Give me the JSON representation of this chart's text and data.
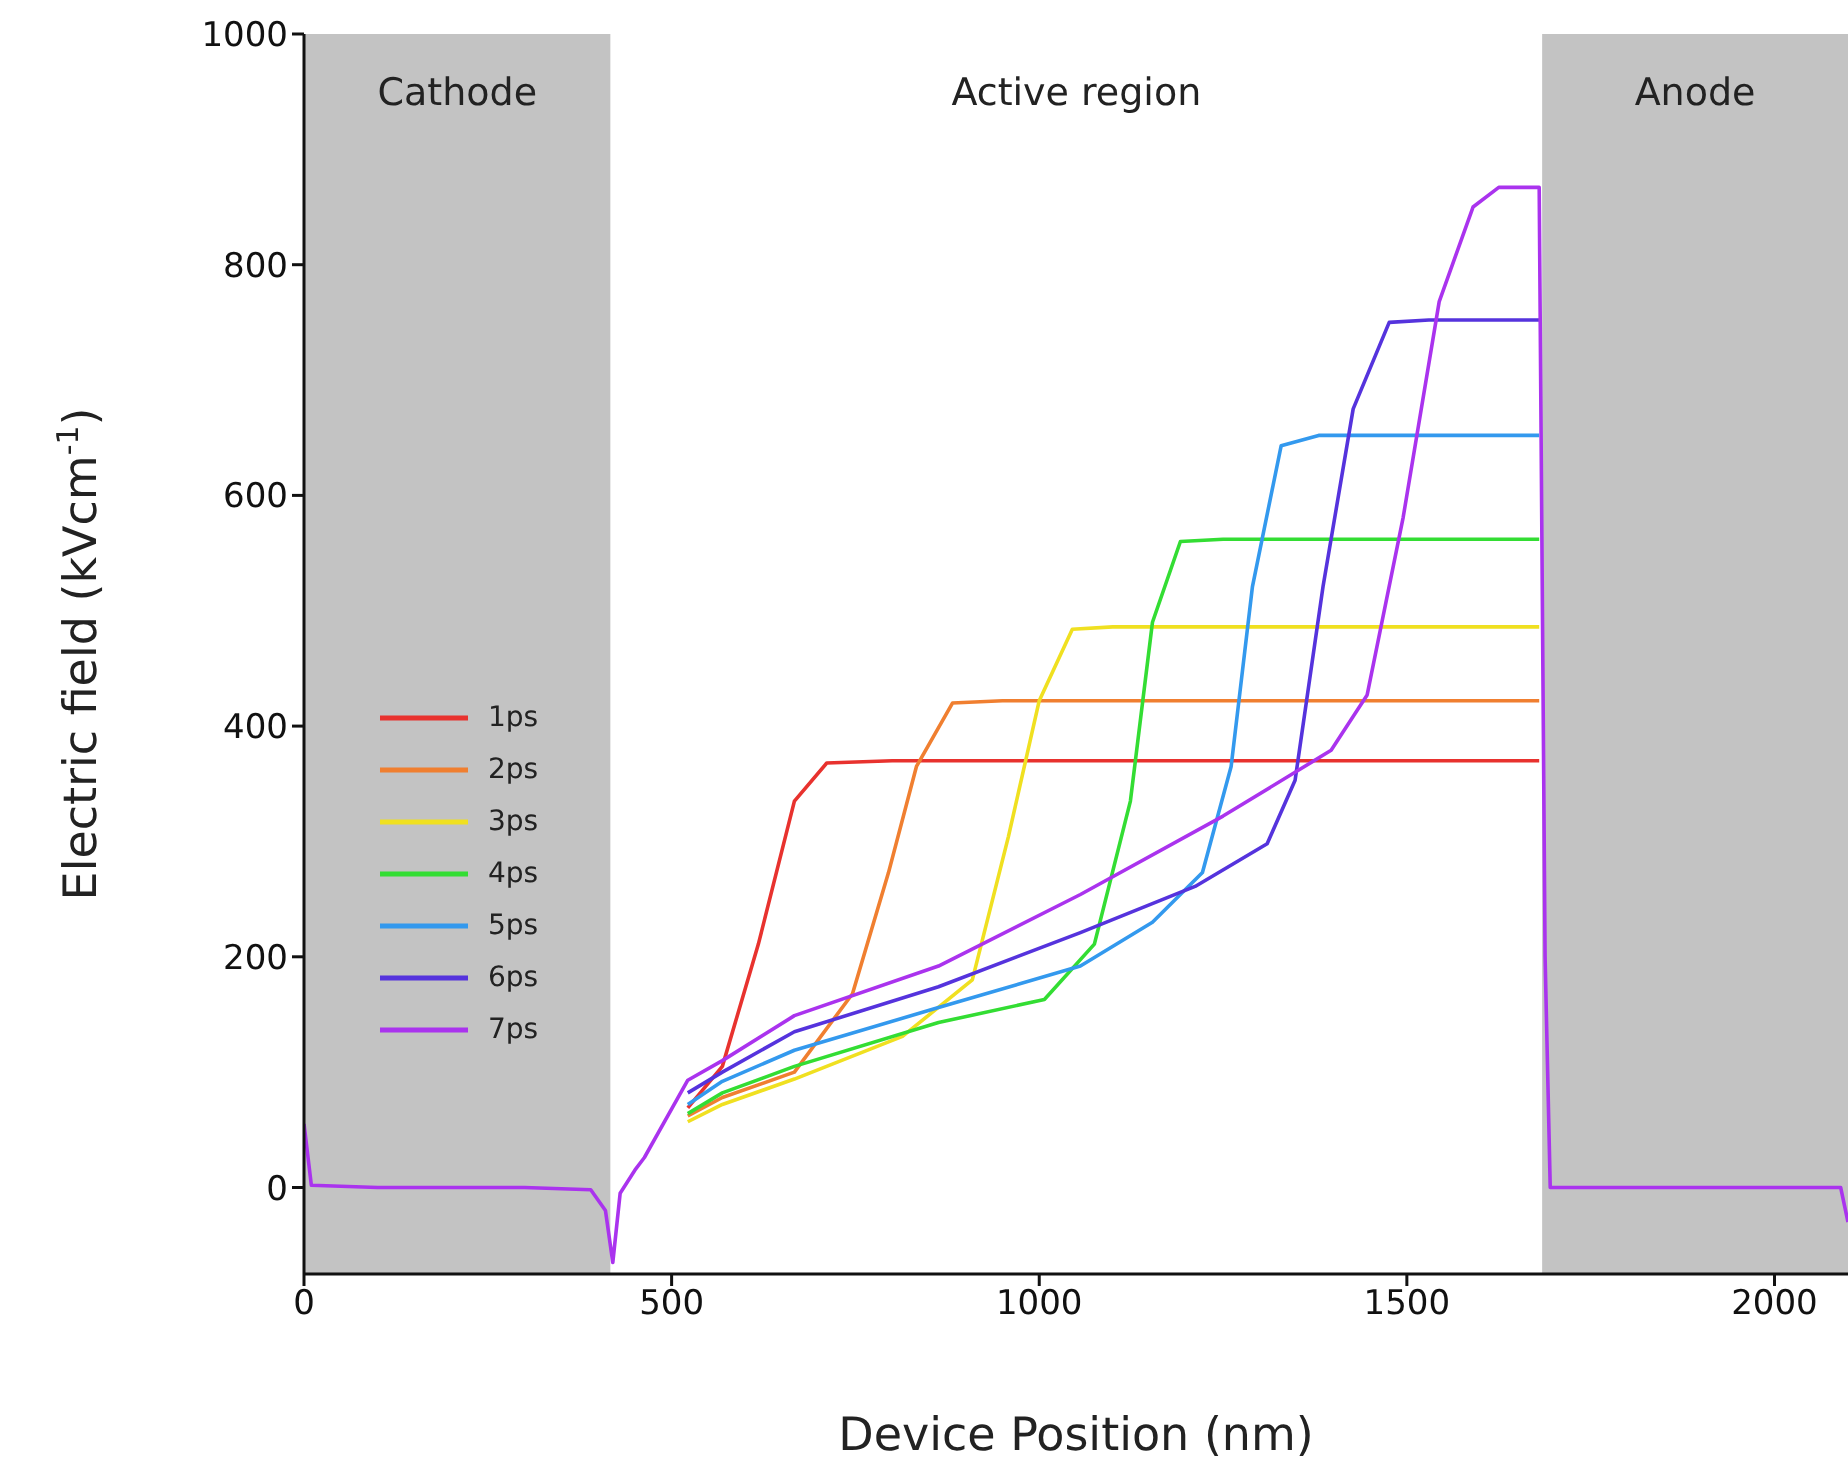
{
  "chart_data": {
    "type": "line",
    "xlabel": "Device Position (nm)",
    "ylabel": "Electric field (kVcm$^{-1}$)",
    "xlim": [
      0,
      2100
    ],
    "xticks": [
      0,
      500,
      1000,
      1500,
      2000
    ],
    "ylim": [
      -75,
      1000
    ],
    "yticks": [
      0,
      200,
      400,
      600,
      800,
      1000
    ],
    "grid": false,
    "legend": "left",
    "marker": "none",
    "line_style": "solid",
    "bands": [
      {
        "axis": "x",
        "from": 0,
        "to": 417,
        "label": "Cathode",
        "color": "#c3c3c3"
      },
      {
        "axis": "x",
        "from": 417,
        "to": 1684,
        "label": "Active region",
        "color": "#ffffff"
      },
      {
        "axis": "x",
        "from": 1684,
        "to": 2100,
        "label": "Anode",
        "color": "#c3c3c3"
      }
    ],
    "series": [
      {
        "name": "1ps",
        "color": "#e8322e",
        "x": [
          522,
          569,
          618,
          667,
          711,
          800,
          1680
        ],
        "values": [
          69,
          105,
          211,
          335,
          368,
          370,
          370
        ]
      },
      {
        "name": "2ps",
        "color": "#f07f30",
        "x": [
          522,
          569,
          667,
          746,
          795,
          833,
          882,
          950,
          1680
        ],
        "values": [
          62,
          78,
          100,
          168,
          273,
          365,
          420,
          422,
          422
        ]
      },
      {
        "name": "3ps",
        "color": "#f0e020",
        "x": [
          522,
          569,
          667,
          814,
          909,
          958,
          1000,
          1045,
          1100,
          1680
        ],
        "values": [
          57,
          72,
          94,
          131,
          180,
          304,
          422,
          484,
          486,
          486
        ]
      },
      {
        "name": "4ps",
        "color": "#33dd33",
        "x": [
          522,
          569,
          667,
          863,
          1007,
          1075,
          1124,
          1154,
          1192,
          1250,
          1680
        ],
        "values": [
          64,
          82,
          105,
          143,
          163,
          211,
          335,
          490,
          560,
          562,
          562
        ]
      },
      {
        "name": "5ps",
        "color": "#3399ee",
        "x": [
          522,
          569,
          667,
          863,
          1056,
          1154,
          1222,
          1261,
          1290,
          1329,
          1380,
          1680
        ],
        "values": [
          72,
          92,
          119,
          156,
          192,
          230,
          273,
          365,
          521,
          643,
          652,
          652
        ]
      },
      {
        "name": "6ps",
        "color": "#5533dd",
        "x": [
          522,
          569,
          667,
          863,
          1056,
          1212,
          1310,
          1348,
          1386,
          1427,
          1476,
          1530,
          1680
        ],
        "values": [
          82,
          100,
          135,
          174,
          221,
          261,
          298,
          353,
          521,
          675,
          750,
          752,
          752
        ]
      },
      {
        "name": "7ps",
        "color": "#aa33ee",
        "x": [
          0,
          10,
          100,
          200,
          300,
          390,
          410,
          420,
          430,
          450,
          463,
          522,
          569,
          667,
          863,
          1056,
          1250,
          1397,
          1446,
          1495,
          1544,
          1590,
          1625,
          1680,
          1688,
          1695,
          1800,
          1900,
          2000,
          2090,
          2100
        ],
        "values": [
          55,
          2,
          0,
          0,
          0,
          -2,
          -20,
          -65,
          -5,
          15,
          26,
          93,
          110,
          149,
          192,
          254,
          322,
          379,
          427,
          581,
          768,
          850,
          867,
          867,
          200,
          0,
          0,
          0,
          0,
          0,
          -30
        ]
      }
    ]
  }
}
